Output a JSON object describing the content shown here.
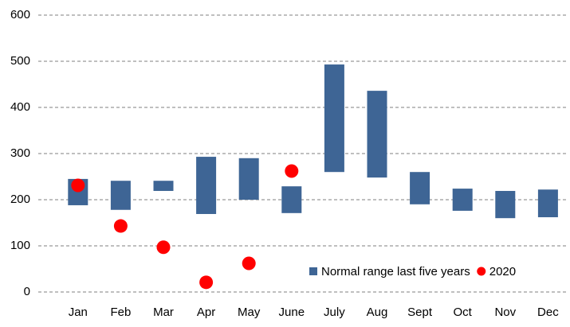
{
  "chart_data": {
    "type": "combo",
    "categories": [
      "Jan",
      "Feb",
      "Mar",
      "Apr",
      "May",
      "June",
      "July",
      "Aug",
      "Sept",
      "Oct",
      "Nov",
      "Dec"
    ],
    "series": [
      {
        "name": "Normal range last five years",
        "type": "range",
        "color": "#3e6595",
        "values": [
          [
            188,
            245
          ],
          [
            178,
            241
          ],
          [
            219,
            241
          ],
          [
            169,
            293
          ],
          [
            200,
            290
          ],
          [
            171,
            229
          ],
          [
            260,
            493
          ],
          [
            248,
            436
          ],
          [
            190,
            260
          ],
          [
            176,
            224
          ],
          [
            160,
            219
          ],
          [
            162,
            222
          ]
        ]
      },
      {
        "name": "2020",
        "type": "dot",
        "color": "#ff0000",
        "values": [
          231,
          143,
          97,
          21,
          62,
          262,
          null,
          null,
          null,
          null,
          null,
          null
        ]
      }
    ],
    "ylim": [
      0,
      600
    ],
    "yticks": [
      0,
      100,
      200,
      300,
      400,
      500,
      600
    ],
    "grid": true,
    "legend": "bottom-right"
  }
}
